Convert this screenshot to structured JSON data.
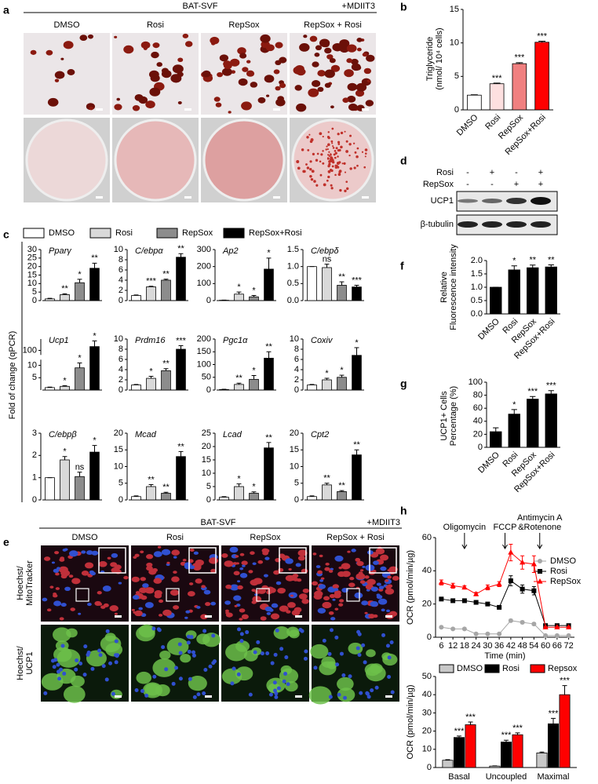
{
  "figure_a": {
    "panel": "a",
    "group": "BAT-SVF",
    "treatment": "+MDIIT3",
    "columns": [
      "DMSO",
      "Rosi",
      "RepSox",
      "RepSox + Rosi"
    ]
  },
  "figure_d": {
    "panel": "d",
    "rows": [
      "Rosi",
      "RepSox"
    ],
    "signs": [
      [
        "-",
        "+",
        "-",
        "+"
      ],
      [
        "-",
        "-",
        "+",
        "+"
      ]
    ],
    "bands": [
      "UCP1",
      "β-tubulin"
    ]
  },
  "figure_e": {
    "panel": "e",
    "group": "BAT-SVF",
    "treatment": "+MDIIT3",
    "columns": [
      "DMSO",
      "Rosi",
      "RepSox",
      "RepSox + Rosi"
    ],
    "row_labels": [
      [
        "Hoechst/",
        "MitoTracker"
      ],
      [
        "Hoechst/",
        "UCP1"
      ]
    ]
  },
  "chart_data": [
    {
      "panel": "b",
      "type": "bar",
      "ylabel": [
        "Triglyceride",
        "(nmol/ 10⁴ cells)"
      ],
      "categories": [
        "DMSO",
        "Rosi",
        "RepSox",
        "RepSox+Rosi"
      ],
      "values": [
        2.2,
        3.9,
        6.9,
        10.1
      ],
      "errors": [
        0.05,
        0.1,
        0.15,
        0.15
      ],
      "colors": [
        "#ffffff",
        "#fde0e0",
        "#f08080",
        "#ff0000"
      ],
      "sig": [
        null,
        "***",
        "***",
        "***"
      ],
      "ylim": [
        0,
        15
      ],
      "yticks": [
        0,
        5,
        10,
        15
      ]
    },
    {
      "panel": "c",
      "type": "bar_grid",
      "ylabel": "Fold of change (qPCR)",
      "legend": [
        "DMSO",
        "Rosi",
        "RepSox",
        "RepSox+Rosi"
      ],
      "colors": [
        "#ffffff",
        "#d9d9d9",
        "#8c8c8c",
        "#000000"
      ],
      "subplots": [
        {
          "title": "Pparγ",
          "values": [
            1,
            3.5,
            10.5,
            19
          ],
          "errors": [
            0.3,
            0.5,
            2,
            3
          ],
          "sig": [
            null,
            "**",
            "*",
            "**"
          ],
          "ylim": [
            0,
            30
          ],
          "yticks": [
            0,
            5,
            10,
            15,
            20,
            25,
            30
          ]
        },
        {
          "title": "C/ebpα",
          "values": [
            1,
            2.7,
            4,
            8.5
          ],
          "errors": [
            0.1,
            0.1,
            0.2,
            0.7
          ],
          "sig": [
            null,
            "***",
            "**",
            "**"
          ],
          "ylim": [
            0,
            10
          ],
          "yticks": [
            0,
            2,
            4,
            6,
            8,
            10
          ]
        },
        {
          "title": "Ap2",
          "values": [
            2,
            38,
            22,
            185
          ],
          "errors": [
            1,
            12,
            8,
            65
          ],
          "sig": [
            null,
            "*",
            "*",
            "*"
          ],
          "ylim": [
            0,
            300
          ],
          "yticks": [
            0,
            100,
            200,
            300
          ]
        },
        {
          "title": "C/ebpδ",
          "values": [
            1,
            0.97,
            0.45,
            0.4
          ],
          "errors": [
            0,
            0.1,
            0.1,
            0.05
          ],
          "sig": [
            null,
            "ns",
            "**",
            "***"
          ],
          "ylim": [
            0,
            1.5
          ],
          "yticks": [
            {
              "value": 0,
              "label": "0.0"
            },
            0.5,
            {
              "value": 1,
              "label": "1.0"
            },
            1.5
          ]
        },
        {
          "title": "Ucp1",
          "values": [
            1,
            1.5,
            9,
            120
          ],
          "errors": [
            0.2,
            0.3,
            2,
            30
          ],
          "sig": [
            null,
            "*",
            "*",
            "*"
          ],
          "ylim": [
            0,
            160
          ],
          "ybreak": [
            12,
            80
          ],
          "yticks": [
            5,
            10,
            100
          ]
        },
        {
          "title": "Prdm16",
          "values": [
            1,
            2.3,
            3.8,
            8
          ],
          "errors": [
            0.1,
            0.4,
            0.4,
            0.7
          ],
          "sig": [
            null,
            "*",
            "**",
            "***"
          ],
          "ylim": [
            0,
            10
          ],
          "yticks": [
            0,
            2,
            4,
            6,
            8,
            10
          ]
        },
        {
          "title": "Pgc1α",
          "values": [
            2,
            22,
            42,
            125
          ],
          "errors": [
            1,
            5,
            15,
            25
          ],
          "sig": [
            null,
            "**",
            "*",
            "**"
          ],
          "ylim": [
            0,
            200
          ],
          "yticks": [
            0,
            50,
            100,
            150,
            200
          ]
        },
        {
          "title": "Coxiv",
          "values": [
            1,
            2,
            2.5,
            6.8
          ],
          "errors": [
            0.1,
            0.3,
            0.4,
            1.5
          ],
          "sig": [
            null,
            "*",
            "*",
            "*"
          ],
          "ylim": [
            0,
            10
          ],
          "yticks": [
            0,
            2,
            4,
            6,
            8,
            10
          ]
        },
        {
          "title": "C/ebpβ",
          "values": [
            1,
            1.8,
            1.05,
            2.15
          ],
          "errors": [
            0,
            0.15,
            0.2,
            0.3
          ],
          "sig": [
            null,
            "*",
            "ns",
            "*"
          ],
          "ylim": [
            0,
            3
          ],
          "yticks": [
            0,
            1,
            2,
            3
          ]
        },
        {
          "title": "Mcad",
          "values": [
            1,
            4,
            2,
            13
          ],
          "errors": [
            0.2,
            0.6,
            0.3,
            1.5
          ],
          "sig": [
            null,
            "**",
            "**",
            "**"
          ],
          "ylim": [
            0,
            20
          ],
          "yticks": [
            0,
            5,
            10,
            15,
            20
          ]
        },
        {
          "title": "Lcad",
          "values": [
            1,
            5,
            2.5,
            19.5
          ],
          "errors": [
            0.2,
            1,
            0.5,
            2
          ],
          "sig": [
            null,
            "*",
            "*",
            "**"
          ],
          "ylim": [
            0,
            25
          ],
          "yticks": [
            0,
            5,
            10,
            15,
            20,
            25
          ]
        },
        {
          "title": "Cpt2",
          "values": [
            1,
            4.5,
            2.5,
            13.5
          ],
          "errors": [
            0.2,
            0.5,
            0.3,
            1.5
          ],
          "sig": [
            null,
            "**",
            "**",
            "**"
          ],
          "ylim": [
            0,
            20
          ],
          "yticks": [
            0,
            5,
            10,
            15,
            20
          ]
        }
      ]
    },
    {
      "panel": "f",
      "type": "bar",
      "ylabel": [
        "Relative",
        "Fluorescence intensity"
      ],
      "categories": [
        "DMSO",
        "Rosi",
        "RepSox",
        "RepSox+Rosi"
      ],
      "values": [
        1,
        1.65,
        1.73,
        1.76
      ],
      "errors": [
        0,
        0.15,
        0.1,
        0.08
      ],
      "colors": [
        "#000000",
        "#000000",
        "#000000",
        "#000000"
      ],
      "sig": [
        null,
        "*",
        "**",
        "**"
      ],
      "ylim": [
        0,
        2
      ],
      "yticks": [
        {
          "value": 0,
          "label": "0.0"
        },
        0.5,
        {
          "value": 1,
          "label": "1.0"
        },
        1.5,
        {
          "value": 2,
          "label": "2.0"
        }
      ]
    },
    {
      "panel": "g",
      "type": "bar",
      "ylabel": [
        "UCP1+ Cells",
        "Percentage (%)"
      ],
      "categories": [
        "DMSO",
        "Rosi",
        "RepSox",
        "RepSox+Rosi"
      ],
      "values": [
        24,
        51,
        74,
        82
      ],
      "errors": [
        6,
        7,
        4,
        5
      ],
      "colors": [
        "#000000",
        "#000000",
        "#000000",
        "#000000"
      ],
      "sig": [
        null,
        "*",
        "***",
        "***"
      ],
      "ylim": [
        0,
        100
      ],
      "yticks": [
        0,
        20,
        40,
        60,
        80,
        100
      ]
    },
    {
      "panel": "h",
      "type": "line",
      "ylabel": "OCR (pmol/min/µg)",
      "xlabel": "Time (min)",
      "legend": "right",
      "x": [
        6,
        12,
        18,
        24,
        30,
        36,
        42,
        48,
        54,
        60,
        66,
        72
      ],
      "xlim": [
        3,
        75
      ],
      "xticks": [
        6,
        12,
        18,
        24,
        30,
        36,
        42,
        48,
        54,
        60,
        66,
        72
      ],
      "ylim": [
        0,
        60
      ],
      "yticks": [
        0,
        20,
        40,
        60
      ],
      "annotations": [
        {
          "text": [
            "Oligomycin"
          ],
          "x": 18
        },
        {
          "text": [
            "FCCP"
          ],
          "x": 39
        },
        {
          "text": [
            "Antimycin A",
            "&Rotenone"
          ],
          "x": 57
        }
      ],
      "series": [
        {
          "name": "DMSO",
          "color": "#a6a6a6",
          "marker": "circle",
          "values": [
            6,
            5,
            5,
            2,
            2,
            2,
            10,
            9,
            8,
            1,
            1,
            1
          ],
          "errors": [
            0.5,
            0.5,
            0.5,
            0.5,
            0.5,
            0.5,
            0.8,
            0.8,
            0.8,
            0.3,
            0.3,
            0.3
          ]
        },
        {
          "name": "Rosi",
          "color": "#000000",
          "marker": "square",
          "values": [
            23,
            22,
            22,
            21,
            20,
            18,
            34,
            29,
            28,
            7,
            7,
            7
          ],
          "errors": [
            1,
            1,
            1,
            1,
            1,
            1,
            3,
            2.5,
            2.5,
            0.5,
            0.5,
            0.5
          ]
        },
        {
          "name": "RepSox",
          "color": "#ff0000",
          "marker": "triangle",
          "values": [
            33,
            31,
            30,
            26,
            30,
            32,
            51,
            45,
            44,
            6,
            6,
            6
          ],
          "errors": [
            1.5,
            1.5,
            1,
            1,
            1.5,
            1.5,
            5,
            4,
            5,
            0.5,
            0.5,
            0.5
          ]
        }
      ]
    },
    {
      "type": "grouped_bar",
      "ylabel": "OCR (pmol/min/µg)",
      "categories": [
        "Basal",
        "Uncoupled",
        "Maximal"
      ],
      "ylim": [
        0,
        50
      ],
      "yticks": [
        0,
        10,
        20,
        30,
        40,
        50
      ],
      "series": [
        {
          "name": "DMSO",
          "color": "#c8c8c8",
          "values": [
            4,
            0.8,
            8
          ],
          "errors": [
            0.3,
            0.1,
            0.5
          ]
        },
        {
          "name": "Rosi",
          "color": "#000000",
          "values": [
            16.5,
            14,
            24
          ],
          "errors": [
            0.8,
            1,
            3
          ],
          "sig": [
            "***",
            "***",
            "***"
          ]
        },
        {
          "name": "Repsox",
          "color": "#ff0000",
          "values": [
            23.5,
            18,
            40
          ],
          "errors": [
            1.5,
            1,
            5
          ],
          "sig": [
            "***",
            "***",
            "***"
          ]
        }
      ]
    }
  ]
}
